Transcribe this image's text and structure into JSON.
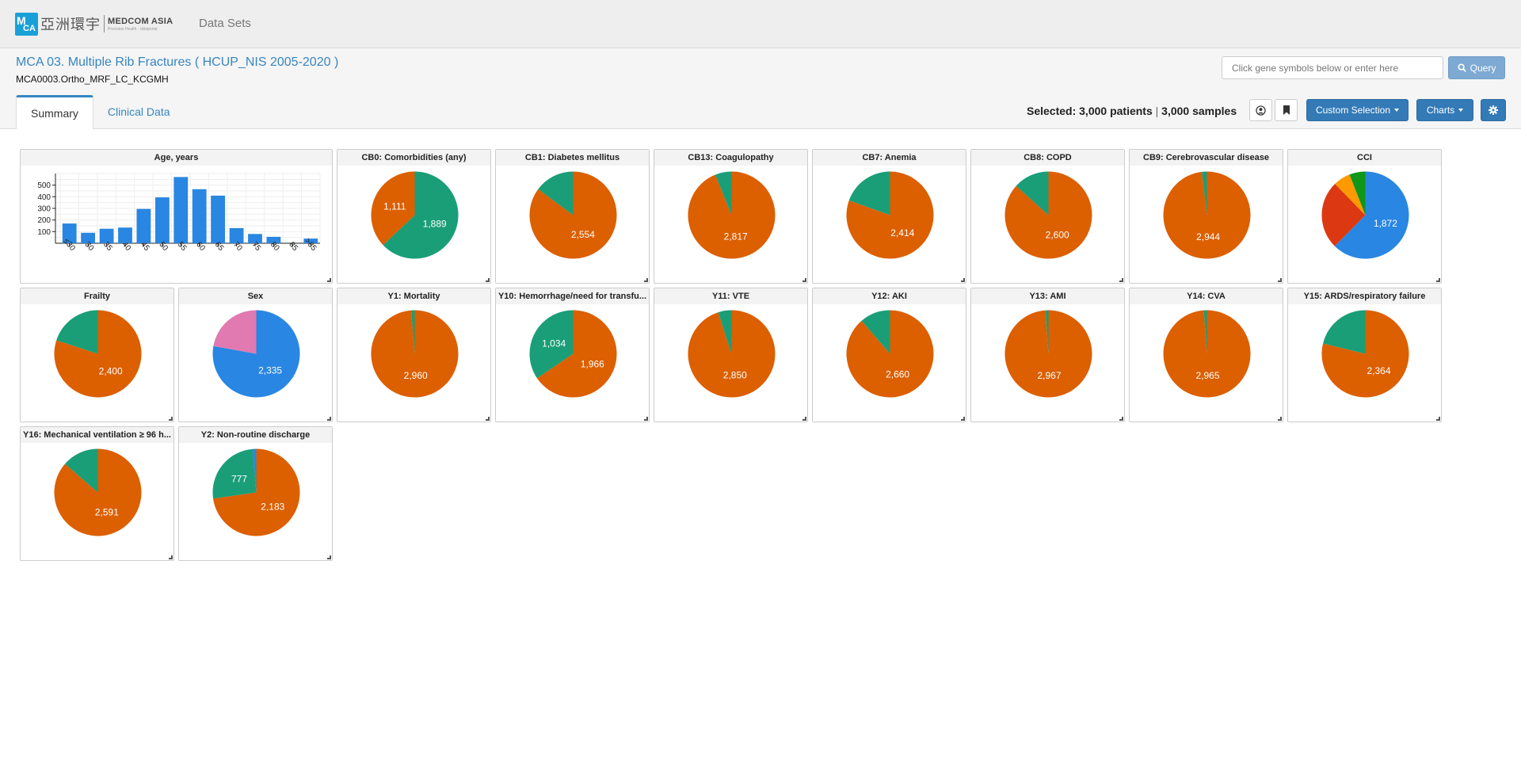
{
  "navbar": {
    "logo_cn": "亞洲環宇",
    "logo_en": "MEDCOM ASIA",
    "logo_en_small": "Precision Health · cbioportal",
    "datasets_link": "Data Sets"
  },
  "study": {
    "title": "MCA 03. Multiple Rib Fractures ( HCUP_NIS 2005-2020 )",
    "subtitle": "MCA0003.Ortho_MRF_LC_KCGMH"
  },
  "search": {
    "placeholder": "Click gene symbols below or enter here",
    "query_label": "Query"
  },
  "tabs": [
    {
      "label": "Summary",
      "active": true
    },
    {
      "label": "Clinical Data",
      "active": false
    }
  ],
  "selection": {
    "prefix": "Selected:",
    "patients": "3,000 patients",
    "separator": "|",
    "samples": "3,000 samples"
  },
  "toolbar": {
    "custom_selection": "Custom Selection",
    "charts": "Charts"
  },
  "icons": {
    "user": "user-circle-icon",
    "bookmark": "bookmark-icon",
    "settings": "gear-icon",
    "search": "search-icon"
  },
  "colors": {
    "orange": "#dc5f00",
    "green": "#1a9e77",
    "blue": "#2986e2",
    "pink": "#e07ab0",
    "red": "#dc3912",
    "amber": "#ff9900",
    "dkgreen": "#109618"
  },
  "charts": [
    {
      "title": "Age, years",
      "type": "bar",
      "chart_data": {
        "type": "bar",
        "categories": [
          "≤30",
          "30",
          "35",
          "40",
          "45",
          "50",
          "55",
          "60",
          "65",
          "70",
          "75",
          "80",
          "85",
          ">85"
        ],
        "values": [
          170,
          90,
          125,
          135,
          295,
          395,
          570,
          465,
          410,
          130,
          80,
          55,
          0,
          40
        ],
        "yticks": [
          100,
          200,
          300,
          400,
          500
        ],
        "ylim": [
          0,
          600
        ]
      }
    },
    {
      "title": "CB0: Comorbidities (any)",
      "type": "pie",
      "chart_data": {
        "type": "pie",
        "slices": [
          {
            "value": 1889,
            "label": "1,889",
            "color": "#1a9e77"
          },
          {
            "value": 1111,
            "label": "1,111",
            "color": "#dc5f00"
          }
        ]
      }
    },
    {
      "title": "CB1: Diabetes mellitus",
      "type": "pie",
      "chart_data": {
        "type": "pie",
        "slices": [
          {
            "value": 2554,
            "label": "2,554",
            "color": "#dc5f00"
          },
          {
            "value": 446,
            "label": "",
            "color": "#1a9e77"
          }
        ]
      }
    },
    {
      "title": "CB13: Coagulopathy",
      "type": "pie",
      "chart_data": {
        "type": "pie",
        "slices": [
          {
            "value": 2817,
            "label": "2,817",
            "color": "#dc5f00"
          },
          {
            "value": 183,
            "label": "",
            "color": "#1a9e77"
          }
        ]
      }
    },
    {
      "title": "CB7: Anemia",
      "type": "pie",
      "chart_data": {
        "type": "pie",
        "slices": [
          {
            "value": 2414,
            "label": "2,414",
            "color": "#dc5f00"
          },
          {
            "value": 586,
            "label": "",
            "color": "#1a9e77"
          }
        ]
      }
    },
    {
      "title": "CB8: COPD",
      "type": "pie",
      "chart_data": {
        "type": "pie",
        "slices": [
          {
            "value": 2600,
            "label": "2,600",
            "color": "#dc5f00"
          },
          {
            "value": 400,
            "label": "",
            "color": "#1a9e77"
          }
        ]
      }
    },
    {
      "title": "CB9: Cerebrovascular disease",
      "type": "pie",
      "chart_data": {
        "type": "pie",
        "slices": [
          {
            "value": 2944,
            "label": "2,944",
            "color": "#dc5f00"
          },
          {
            "value": 56,
            "label": "",
            "color": "#1a9e77"
          }
        ]
      }
    },
    {
      "title": "CCI",
      "type": "pie",
      "chart_data": {
        "type": "pie",
        "slices": [
          {
            "value": 1872,
            "label": "1,872",
            "color": "#2986e2"
          },
          {
            "value": 760,
            "label": "",
            "color": "#dc3912"
          },
          {
            "value": 190,
            "label": "",
            "color": "#ff9900"
          },
          {
            "value": 178,
            "label": "",
            "color": "#109618"
          }
        ]
      }
    },
    {
      "title": "Frailty",
      "type": "pie",
      "chart_data": {
        "type": "pie",
        "slices": [
          {
            "value": 2400,
            "label": "2,400",
            "color": "#dc5f00"
          },
          {
            "value": 600,
            "label": "",
            "color": "#1a9e77"
          }
        ]
      }
    },
    {
      "title": "Sex",
      "type": "pie",
      "chart_data": {
        "type": "pie",
        "slices": [
          {
            "value": 2335,
            "label": "2,335",
            "color": "#2986e2"
          },
          {
            "value": 665,
            "label": "",
            "color": "#e07ab0"
          }
        ]
      }
    },
    {
      "title": "Y1: Mortality",
      "type": "pie",
      "chart_data": {
        "type": "pie",
        "slices": [
          {
            "value": 2960,
            "label": "2,960",
            "color": "#dc5f00"
          },
          {
            "value": 40,
            "label": "",
            "color": "#1a9e77"
          }
        ]
      }
    },
    {
      "title": "Y10: Hemorrhage/need for transfu...",
      "type": "pie",
      "chart_data": {
        "type": "pie",
        "slices": [
          {
            "value": 1966,
            "label": "1,966",
            "color": "#dc5f00"
          },
          {
            "value": 1034,
            "label": "1,034",
            "color": "#1a9e77"
          }
        ]
      }
    },
    {
      "title": "Y11: VTE",
      "type": "pie",
      "chart_data": {
        "type": "pie",
        "slices": [
          {
            "value": 2850,
            "label": "2,850",
            "color": "#dc5f00"
          },
          {
            "value": 150,
            "label": "",
            "color": "#1a9e77"
          }
        ]
      }
    },
    {
      "title": "Y12: AKI",
      "type": "pie",
      "chart_data": {
        "type": "pie",
        "slices": [
          {
            "value": 2660,
            "label": "2,660",
            "color": "#dc5f00"
          },
          {
            "value": 340,
            "label": "",
            "color": "#1a9e77"
          }
        ]
      }
    },
    {
      "title": "Y13: AMI",
      "type": "pie",
      "chart_data": {
        "type": "pie",
        "slices": [
          {
            "value": 2967,
            "label": "2,967",
            "color": "#dc5f00"
          },
          {
            "value": 33,
            "label": "",
            "color": "#1a9e77"
          }
        ]
      }
    },
    {
      "title": "Y14: CVA",
      "type": "pie",
      "chart_data": {
        "type": "pie",
        "slices": [
          {
            "value": 2965,
            "label": "2,965",
            "color": "#dc5f00"
          },
          {
            "value": 35,
            "label": "",
            "color": "#1a9e77"
          }
        ]
      }
    },
    {
      "title": "Y15: ARDS/respiratory failure",
      "type": "pie",
      "chart_data": {
        "type": "pie",
        "slices": [
          {
            "value": 2364,
            "label": "2,364",
            "color": "#dc5f00"
          },
          {
            "value": 636,
            "label": "",
            "color": "#1a9e77"
          }
        ]
      }
    },
    {
      "title": "Y16: Mechanical ventilation ≥ 96 h...",
      "type": "pie",
      "chart_data": {
        "type": "pie",
        "slices": [
          {
            "value": 2591,
            "label": "2,591",
            "color": "#dc5f00"
          },
          {
            "value": 409,
            "label": "",
            "color": "#1a9e77"
          }
        ]
      }
    },
    {
      "title": "Y2: Non-routine discharge",
      "type": "pie",
      "chart_data": {
        "type": "pie",
        "slices": [
          {
            "value": 2183,
            "label": "2,183",
            "color": "#dc5f00"
          },
          {
            "value": 777,
            "label": "777",
            "color": "#1a9e77"
          },
          {
            "value": 40,
            "label": "",
            "color": "#2986e2"
          }
        ]
      }
    }
  ]
}
